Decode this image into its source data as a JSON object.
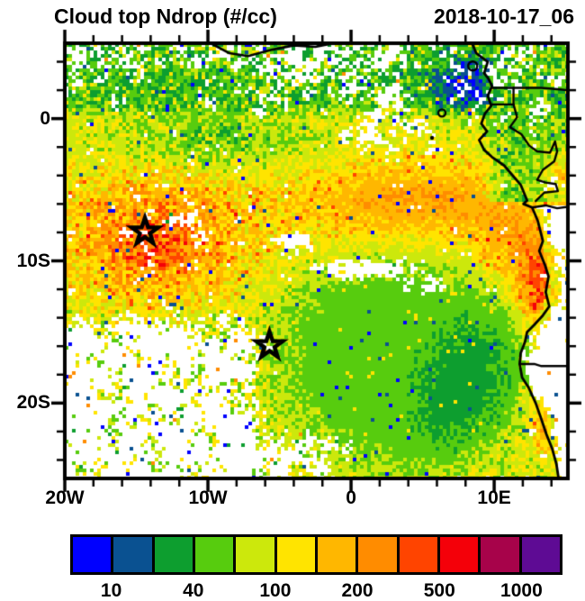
{
  "header": {
    "title": "Cloud top Ndrop (#/cc)",
    "timestamp": "2018-10-17_06"
  },
  "chart_data": {
    "type": "heatmap",
    "title": "Cloud top Ndrop (#/cc)",
    "timestamp": "2018-10-17_06",
    "field_units": "#/cc",
    "x_axis": {
      "major_ticks": [
        {
          "lon": -20,
          "label": "20W"
        },
        {
          "lon": -10,
          "label": "10W"
        },
        {
          "lon": 0,
          "label": "0"
        },
        {
          "lon": 10,
          "label": "10E"
        }
      ],
      "minor_step_deg": 2
    },
    "y_axis": {
      "major_ticks": [
        {
          "lat": 0,
          "label": "0"
        },
        {
          "lat": -10,
          "label": "10S"
        },
        {
          "lat": -20,
          "label": "20S"
        }
      ],
      "minor_step_deg": 2
    },
    "extent": {
      "lon_min": -20.0,
      "lon_max": 15.15,
      "lat_min": -25.3,
      "lat_max": 5.3
    },
    "markers": [
      {
        "id": "star-1",
        "shape": "star",
        "lon": -14.4,
        "lat": -7.95
      },
      {
        "id": "star-2",
        "shape": "star",
        "lon": -5.7,
        "lat": -15.95
      }
    ],
    "colorbar": {
      "position": "bottom",
      "colors": [
        "#0000ff",
        "#0a5191",
        "#0d9e2f",
        "#57cc0e",
        "#cce80c",
        "#ffe400",
        "#ffb700",
        "#ff8c00",
        "#ff4400",
        "#f40009",
        "#a7034a",
        "#5e0b94"
      ],
      "tick_labels": [
        {
          "text": "10",
          "boundary_index": 1
        },
        {
          "text": "40",
          "boundary_index": 3
        },
        {
          "text": "100",
          "boundary_index": 5
        },
        {
          "text": "200",
          "boundary_index": 7
        },
        {
          "text": "500",
          "boundary_index": 9
        },
        {
          "text": "1000",
          "boundary_index": 11
        }
      ]
    }
  }
}
